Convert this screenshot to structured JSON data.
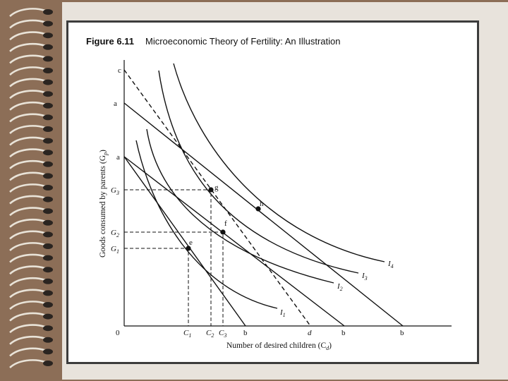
{
  "figure": {
    "number": "Figure 6.11",
    "title": "Microeconomic Theory of Fertility: An Illustration",
    "x_axis_title": "Number of desired children (C",
    "x_axis_sub": "d",
    "y_axis_title": "Goods consumed by parents (G",
    "y_axis_sub": "p",
    "origin": "0",
    "x_ticks": {
      "C1": {
        "main": "C",
        "sub": "1"
      },
      "C2": {
        "main": "C",
        "sub": "2"
      },
      "C3": {
        "main": "C",
        "sub": "3"
      },
      "b1": "b",
      "d": "d",
      "b2": "b",
      "b3": "b"
    },
    "y_ticks": {
      "c": "c",
      "a_high": "a",
      "a_low": "a",
      "G3": {
        "main": "G",
        "sub": "3"
      },
      "G2": {
        "main": "G",
        "sub": "2"
      },
      "G1": {
        "main": "G",
        "sub": "1"
      }
    },
    "points": {
      "e": "e",
      "f": "f",
      "g": "g",
      "h": "h"
    },
    "curves": {
      "I1": {
        "main": "I",
        "sub": "1"
      },
      "I2": {
        "main": "I",
        "sub": "2"
      },
      "I3": {
        "main": "I",
        "sub": "3"
      },
      "I4": {
        "main": "I",
        "sub": "4"
      }
    }
  },
  "colors": {
    "background": "#8c6e57",
    "paper": "#e8e3dc",
    "frame": "#3c3c3c",
    "ink": "#111111"
  }
}
